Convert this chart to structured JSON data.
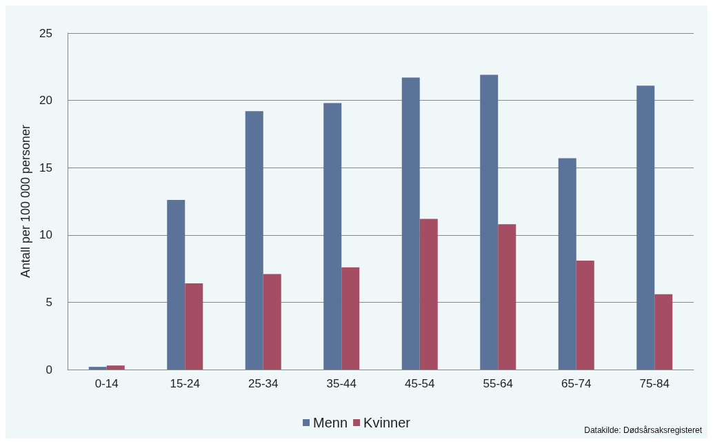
{
  "chart_data": {
    "type": "bar",
    "ylabel": "Antall per 100 000 personer",
    "categories": [
      "0-14",
      "15-24",
      "25-34",
      "35-44",
      "45-54",
      "55-64",
      "65-74",
      "75-84"
    ],
    "series": [
      {
        "name": "Menn",
        "color": "#5b7399",
        "values": [
          0.2,
          12.6,
          19.2,
          19.8,
          21.7,
          21.9,
          15.7,
          21.1
        ]
      },
      {
        "name": "Kvinner",
        "color": "#a54d62",
        "values": [
          0.3,
          6.4,
          7.1,
          7.6,
          11.2,
          10.8,
          8.1,
          5.6
        ]
      }
    ],
    "ylim": [
      0,
      25
    ],
    "yticks": [
      0,
      5,
      10,
      15,
      20,
      25
    ],
    "grid": "y",
    "legend": "bottom",
    "annotations": [
      "Datakilde: Dødsårsaksregisteret"
    ]
  }
}
